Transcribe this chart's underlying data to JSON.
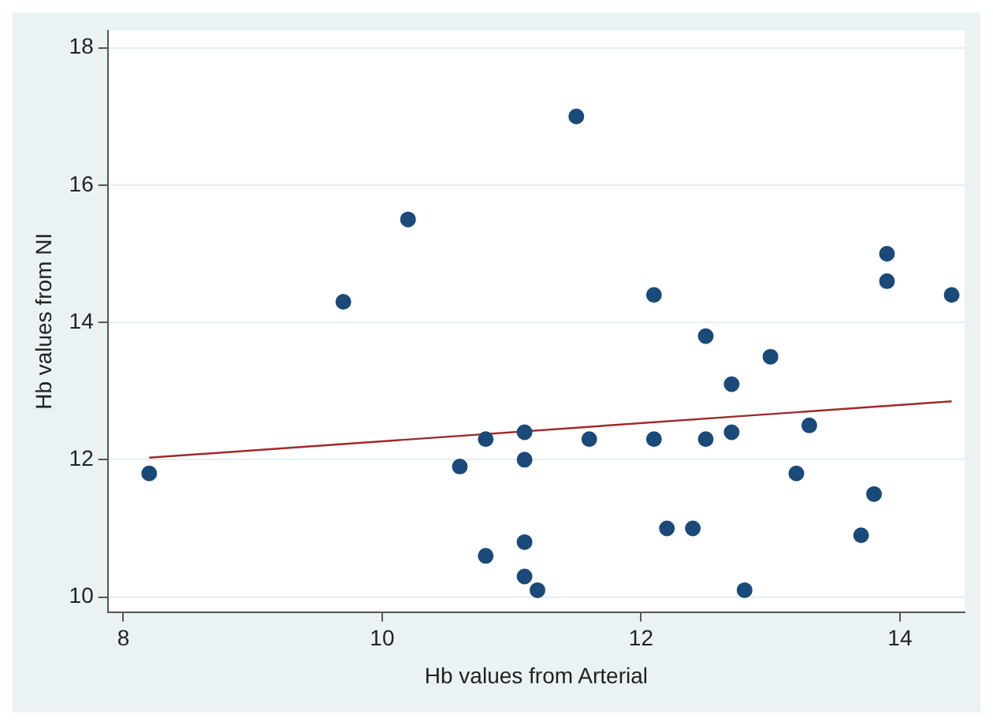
{
  "chart_data": {
    "type": "scatter",
    "xlabel": "Hb values from Arterial",
    "ylabel": "Hb values from NI",
    "xlim": [
      7.88,
      14.5
    ],
    "xticks": [
      8,
      10,
      12,
      14
    ],
    "ylim": [
      9.78,
      18.25
    ],
    "yticks": [
      10,
      12,
      14,
      16,
      18
    ],
    "grid": "y",
    "legend": false,
    "marker": "circle",
    "series": [
      {
        "color": "#1a4a7a",
        "x": [
          8.2,
          9.7,
          10.2,
          10.6,
          10.8,
          10.8,
          11.1,
          11.1,
          11.1,
          11.1,
          11.2,
          11.5,
          11.6,
          12.1,
          12.1,
          12.2,
          12.4,
          12.5,
          12.5,
          12.7,
          12.7,
          12.8,
          13.0,
          13.2,
          13.3,
          13.7,
          13.8,
          13.9,
          13.9,
          14.4
        ],
        "values": [
          11.8,
          14.3,
          15.5,
          11.9,
          12.3,
          10.6,
          12.4,
          12.0,
          10.8,
          10.3,
          10.1,
          17.0,
          12.3,
          14.4,
          12.3,
          11.0,
          11.0,
          13.8,
          12.3,
          13.1,
          12.4,
          10.1,
          13.5,
          11.8,
          12.5,
          10.9,
          11.5,
          15.0,
          14.6,
          14.4
        ]
      },
      {
        "type": "line",
        "color": "#9e2a2b",
        "marker": "none",
        "x": [
          8.2,
          14.4
        ],
        "values": [
          12.03,
          12.85
        ]
      }
    ]
  }
}
